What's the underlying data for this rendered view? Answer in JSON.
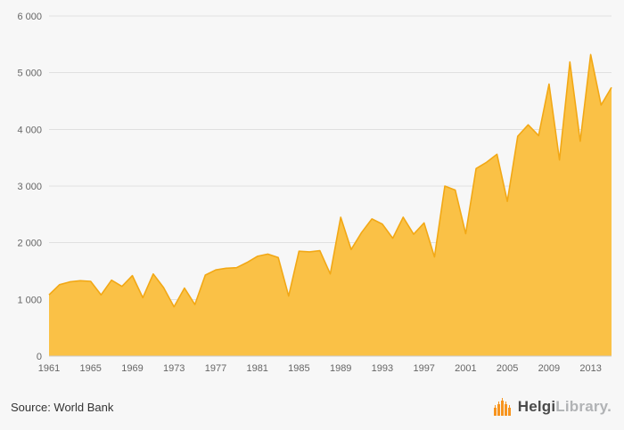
{
  "footer": {
    "source_label": "Source: World Bank"
  },
  "logo": {
    "brand_primary": "Helgi",
    "brand_secondary": "Library.",
    "icon_color": "#f7941e"
  },
  "chart_data": {
    "type": "area",
    "title": "",
    "x": [
      1961,
      1962,
      1963,
      1964,
      1965,
      1966,
      1967,
      1968,
      1969,
      1970,
      1971,
      1972,
      1973,
      1974,
      1975,
      1976,
      1977,
      1978,
      1979,
      1980,
      1981,
      1982,
      1983,
      1984,
      1985,
      1986,
      1987,
      1988,
      1989,
      1990,
      1991,
      1992,
      1993,
      1994,
      1995,
      1996,
      1997,
      1998,
      1999,
      2000,
      2001,
      2002,
      2003,
      2004,
      2005,
      2006,
      2007,
      2008,
      2009,
      2010,
      2011,
      2012,
      2013,
      2014,
      2015
    ],
    "values": [
      1080,
      1260,
      1310,
      1330,
      1320,
      1080,
      1340,
      1230,
      1420,
      1030,
      1450,
      1210,
      870,
      1200,
      910,
      1430,
      1520,
      1550,
      1560,
      1650,
      1760,
      1800,
      1740,
      1060,
      1850,
      1840,
      1860,
      1450,
      2450,
      1880,
      2180,
      2420,
      2330,
      2080,
      2450,
      2150,
      2350,
      1750,
      3000,
      2930,
      2160,
      3310,
      3420,
      3560,
      2730,
      3880,
      4080,
      3890,
      4800,
      3460,
      5190,
      3790,
      5320,
      4430,
      4740
    ],
    "xticks": [
      1961,
      1965,
      1969,
      1973,
      1977,
      1981,
      1985,
      1989,
      1993,
      1997,
      2001,
      2005,
      2009,
      2013
    ],
    "yticks": [
      {
        "v": 0,
        "label": "0"
      },
      {
        "v": 1000,
        "label": "1 000"
      },
      {
        "v": 2000,
        "label": "2 000"
      },
      {
        "v": 3000,
        "label": "3 000"
      },
      {
        "v": 4000,
        "label": "4 000"
      },
      {
        "v": 5000,
        "label": "5 000"
      },
      {
        "v": 6000,
        "label": "6 000"
      }
    ],
    "ylim": [
      0,
      6000
    ],
    "xlabel": "",
    "ylabel": "",
    "legend": "none",
    "grid": true,
    "grid_color": "#e0e0e0",
    "axis_line_color": "#cccccc",
    "area_color": "#fac146",
    "line_color": "#f2a815",
    "background_color": "#f7f7f7"
  }
}
